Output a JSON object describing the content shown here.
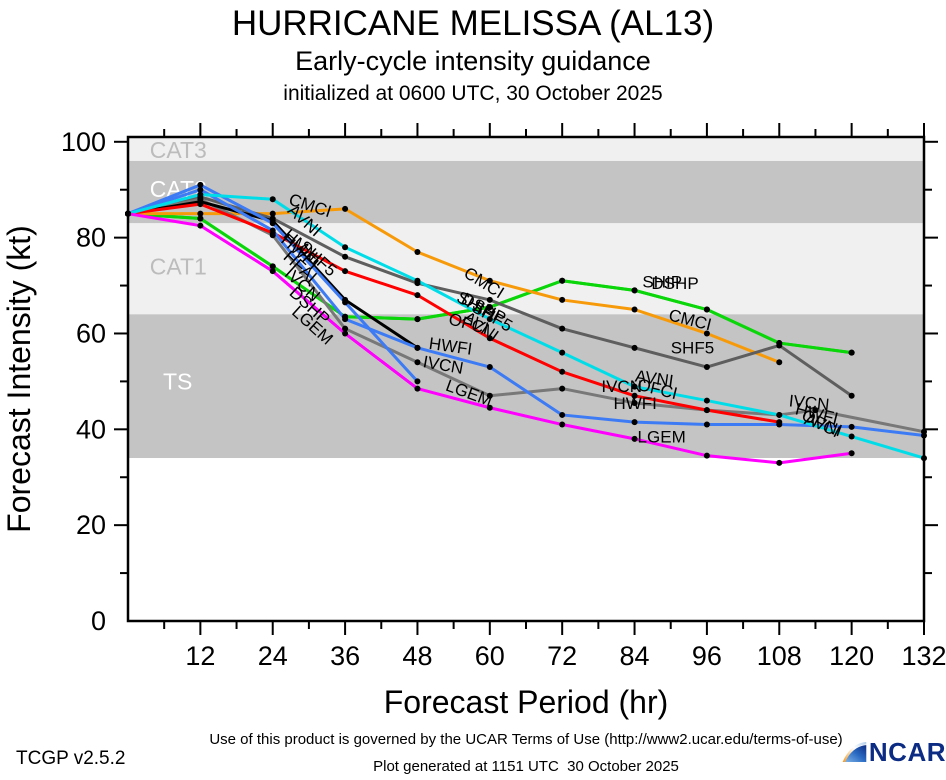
{
  "header": {
    "title": "HURRICANE MELISSA (AL13)",
    "subtitle": "Early-cycle intensity guidance",
    "init_line": "initialized at 0600 UTC, 30 October 2025"
  },
  "chart_data": {
    "type": "line",
    "title": "HURRICANE MELISSA (AL13) early-cycle intensity guidance",
    "xlabel": "Forecast Period (hr)",
    "ylabel": "Forecast Intensity (kt)",
    "x_axis": {
      "min": 0,
      "max": 132,
      "major_step": 12,
      "minor_step": 6,
      "tick_labels": [
        "12",
        "24",
        "36",
        "48",
        "60",
        "72",
        "84",
        "96",
        "108",
        "120",
        "132"
      ]
    },
    "y_axis": {
      "min": 0,
      "max": 101,
      "major_step": 20,
      "minor_step": 10,
      "tick_labels": [
        "0",
        "20",
        "40",
        "60",
        "80",
        "100"
      ]
    },
    "grid": false,
    "legend": "labels drawn along lines",
    "bands": [
      {
        "name": "CAT3",
        "from": 96,
        "to": 101,
        "color": "#f0f0f0",
        "label": "CAT3",
        "label_color": "#bcbcbc",
        "label_x_hr": 3.6,
        "label_y_kt": 98.3
      },
      {
        "name": "CAT2",
        "from": 83,
        "to": 96,
        "color": "#c4c4c4",
        "label": "CAT2",
        "label_color": "#ffffff",
        "label_x_hr": 3.6,
        "label_y_kt": 90.2
      },
      {
        "name": "CAT1",
        "from": 64,
        "to": 83,
        "color": "#f0f0f0",
        "label": "CAT1",
        "label_color": "#bcbcbc",
        "label_x_hr": 3.6,
        "label_y_kt": 74.0
      },
      {
        "name": "TS",
        "from": 34,
        "to": 64,
        "color": "#c4c4c4",
        "label": "TS",
        "label_color": "#ffffff",
        "label_x_hr": 5.8,
        "label_y_kt": 50.0
      },
      {
        "name": "below-TS",
        "from": 0,
        "to": 34,
        "color": "#ffffff",
        "label": "",
        "label_color": "#ffffff",
        "label_x_hr": 0,
        "label_y_kt": 0
      }
    ],
    "series": [
      {
        "name": "SHIP",
        "color": "#0ad60a",
        "points": [
          [
            0,
            85
          ],
          [
            12,
            84
          ],
          [
            24,
            74
          ],
          [
            36,
            63.5
          ],
          [
            48,
            63
          ],
          [
            60,
            65.5
          ],
          [
            72,
            71
          ],
          [
            84,
            69
          ],
          [
            96,
            65
          ],
          [
            108,
            58
          ],
          [
            120,
            56
          ]
        ]
      },
      {
        "name": "DSHP",
        "color": "#0ad60a",
        "points": [
          [
            0,
            85
          ],
          [
            12,
            84
          ],
          [
            24,
            74
          ],
          [
            36,
            63.5
          ],
          [
            48,
            63
          ],
          [
            60,
            65.5
          ],
          [
            72,
            71
          ],
          [
            84,
            69
          ],
          [
            96,
            65
          ],
          [
            108,
            58
          ],
          [
            120,
            56
          ]
        ]
      },
      {
        "name": "CMCI",
        "color": "#f79a0a",
        "points": [
          [
            0,
            85
          ],
          [
            12,
            85
          ],
          [
            24,
            85
          ],
          [
            36,
            86
          ],
          [
            48,
            77
          ],
          [
            60,
            71
          ],
          [
            72,
            67
          ],
          [
            84,
            65
          ],
          [
            96,
            60
          ],
          [
            108,
            54
          ]
        ]
      },
      {
        "name": "SHF5",
        "color": "#5e5e5e",
        "points": [
          [
            0,
            85
          ],
          [
            12,
            88.5
          ],
          [
            24,
            84
          ],
          [
            36,
            76
          ],
          [
            48,
            70.5
          ],
          [
            60,
            67
          ],
          [
            72,
            61
          ],
          [
            84,
            57
          ],
          [
            96,
            53
          ],
          [
            108,
            57.5
          ],
          [
            120,
            47
          ]
        ]
      },
      {
        "name": "IVCN",
        "color": "#787878",
        "points": [
          [
            0,
            85
          ],
          [
            12,
            88
          ],
          [
            24,
            80.5
          ],
          [
            36,
            61
          ],
          [
            48,
            54
          ],
          [
            60,
            47
          ],
          [
            72,
            48.5
          ],
          [
            84,
            45.5
          ],
          [
            96,
            44
          ],
          [
            108,
            43
          ],
          [
            114,
            44
          ],
          [
            132,
            39.5
          ]
        ]
      },
      {
        "name": "HMNI",
        "color": "#000000",
        "points": [
          [
            0,
            85
          ],
          [
            12,
            87.5
          ],
          [
            24,
            83.5
          ],
          [
            36,
            67
          ],
          [
            48,
            57
          ]
        ]
      },
      {
        "name": "OFCI",
        "color": "#ff0000",
        "points": [
          [
            0,
            85
          ],
          [
            12,
            87
          ],
          [
            24,
            81
          ],
          [
            36,
            73
          ],
          [
            48,
            68
          ],
          [
            60,
            59
          ],
          [
            72,
            52
          ],
          [
            84,
            47
          ],
          [
            96,
            44
          ],
          [
            108,
            41.5
          ]
        ]
      },
      {
        "name": "HFAI",
        "color": "#3d7bf5",
        "points": [
          [
            0,
            85
          ],
          [
            12,
            91
          ],
          [
            24,
            83
          ],
          [
            36,
            66.5
          ],
          [
            48,
            50
          ]
        ]
      },
      {
        "name": "HWFI",
        "color": "#3d7bf5",
        "points": [
          [
            0,
            85
          ],
          [
            12,
            90
          ],
          [
            24,
            81.5
          ],
          [
            36,
            63
          ],
          [
            48,
            57
          ],
          [
            60,
            53
          ],
          [
            72,
            43
          ],
          [
            84,
            41.5
          ],
          [
            96,
            41
          ],
          [
            108,
            41
          ],
          [
            120,
            40.5
          ],
          [
            132,
            38.7
          ]
        ]
      },
      {
        "name": "AVNI",
        "color": "#00dde8",
        "points": [
          [
            0,
            85
          ],
          [
            12,
            89
          ],
          [
            24,
            88
          ],
          [
            36,
            78
          ],
          [
            48,
            71
          ],
          [
            60,
            63
          ],
          [
            72,
            56
          ],
          [
            84,
            48.9
          ],
          [
            96,
            46
          ],
          [
            108,
            43
          ],
          [
            120,
            38.5
          ],
          [
            132,
            34
          ]
        ]
      },
      {
        "name": "LGEM",
        "color": "#ff00ff",
        "points": [
          [
            0,
            85
          ],
          [
            12,
            82.5
          ],
          [
            24,
            73
          ],
          [
            36,
            60
          ],
          [
            48,
            48.5
          ],
          [
            60,
            44.5
          ],
          [
            72,
            41
          ],
          [
            84,
            38
          ],
          [
            96,
            34.5
          ],
          [
            108,
            33
          ],
          [
            120,
            35
          ]
        ]
      }
    ],
    "line_labels": [
      {
        "text": "CMCI",
        "x_hr": 26.5,
        "y_kt": 87.0,
        "rot": 18
      },
      {
        "text": "AVNI",
        "x_hr": 26.3,
        "y_kt": 85.4,
        "rot": 42
      },
      {
        "text": "HMNI",
        "x_hr": 25.6,
        "y_kt": 80.2,
        "rot": 42
      },
      {
        "text": "HWFI",
        "x_hr": 25.2,
        "y_kt": 79.2,
        "rot": 42
      },
      {
        "text": "SHF5",
        "x_hr": 28.2,
        "y_kt": 77.8,
        "rot": 42
      },
      {
        "text": "HFAI",
        "x_hr": 25.6,
        "y_kt": 75.7,
        "rot": 42
      },
      {
        "text": "IVCN",
        "x_hr": 25.8,
        "y_kt": 72.2,
        "rot": 42
      },
      {
        "text": "DSHP",
        "x_hr": 26.6,
        "y_kt": 68.2,
        "rot": 42
      },
      {
        "text": "LGEM",
        "x_hr": 27.0,
        "y_kt": 64.2,
        "rot": 42
      },
      {
        "text": "CMCI",
        "x_hr": 55.5,
        "y_kt": 72.0,
        "rot": 32
      },
      {
        "text": "SHIP",
        "x_hr": 54.3,
        "y_kt": 66.8,
        "rot": 28
      },
      {
        "text": "DSHP",
        "x_hr": 55.1,
        "y_kt": 66.5,
        "rot": 28
      },
      {
        "text": "SHF5",
        "x_hr": 56.8,
        "y_kt": 64.8,
        "rot": 30
      },
      {
        "text": "AVNI",
        "x_hr": 55.4,
        "y_kt": 62.8,
        "rot": 35
      },
      {
        "text": "OFCI",
        "x_hr": 53.0,
        "y_kt": 62.0,
        "rot": 15
      },
      {
        "text": "HWFI",
        "x_hr": 49.8,
        "y_kt": 56.8,
        "rot": 8
      },
      {
        "text": "IVCN",
        "x_hr": 48.8,
        "y_kt": 53.0,
        "rot": 10
      },
      {
        "text": "LGEM",
        "x_hr": 52.5,
        "y_kt": 48.2,
        "rot": 20
      },
      {
        "text": "SHIP",
        "x_hr": 85.3,
        "y_kt": 69.6,
        "rot": 0
      },
      {
        "text": "DSHP",
        "x_hr": 86.8,
        "y_kt": 69.3,
        "rot": 0
      },
      {
        "text": "CMCI",
        "x_hr": 89.5,
        "y_kt": 62.8,
        "rot": 14
      },
      {
        "text": "SHF5",
        "x_hr": 90.0,
        "y_kt": 55.8,
        "rot": 0
      },
      {
        "text": "AVNI",
        "x_hr": 84.0,
        "y_kt": 50.0,
        "rot": 8
      },
      {
        "text": "OFCI",
        "x_hr": 84.3,
        "y_kt": 48.3,
        "rot": 14
      },
      {
        "text": "IVCN",
        "x_hr": 78.5,
        "y_kt": 47.8,
        "rot": 0
      },
      {
        "text": "HWFI",
        "x_hr": 80.5,
        "y_kt": 44.2,
        "rot": 0
      },
      {
        "text": "LGEM",
        "x_hr": 84.5,
        "y_kt": 37.2,
        "rot": 0
      },
      {
        "text": "IVCN",
        "x_hr": 109.5,
        "y_kt": 44.8,
        "rot": 6
      },
      {
        "text": "HWFI",
        "x_hr": 110.5,
        "y_kt": 43.2,
        "rot": 14
      },
      {
        "text": "OFCI",
        "x_hr": 111.5,
        "y_kt": 42.2,
        "rot": 28
      },
      {
        "text": "AVNI",
        "x_hr": 112.0,
        "y_kt": 41.2,
        "rot": 20
      }
    ]
  },
  "footer": {
    "terms": "Use of this product is governed by the UCAR Terms of Use (http://www2.ucar.edu/terms-of-use)",
    "version": "TCGP v2.5.2",
    "generated": "Plot generated at 1151 UTC  30 October 2025",
    "logo_text": "NCAR",
    "logo_color": "#0c2c84"
  }
}
